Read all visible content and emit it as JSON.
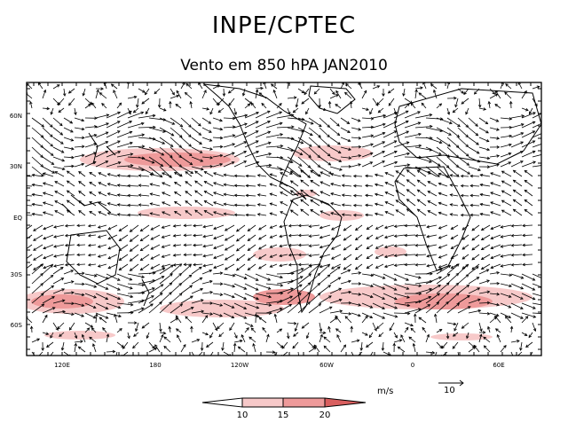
{
  "title": "INPE/CPTEC",
  "subtitle": "Vento em 850 hPA JAN2010",
  "axes": {
    "x_ticks": [
      "120E",
      "180",
      "120W",
      "60W",
      "0",
      "60E"
    ],
    "y_ticks": [
      "60N",
      "30N",
      "EQ",
      "30S",
      "60S"
    ]
  },
  "legend": {
    "units": "m/s",
    "levels": [
      "10",
      "15",
      "20"
    ],
    "colors": [
      "#ffffff",
      "#f7c9c9",
      "#ee9a9a",
      "#d95f5f"
    ],
    "reference_label": "10"
  }
}
